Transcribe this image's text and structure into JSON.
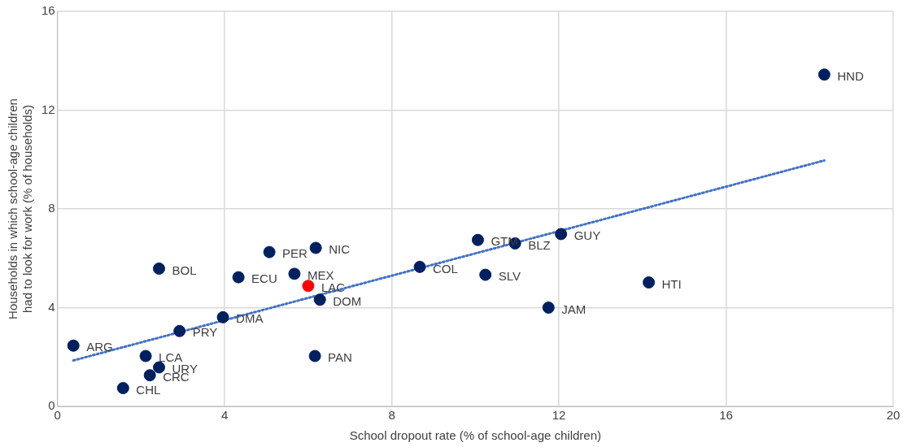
{
  "chart_data": {
    "type": "scatter",
    "xlabel": "School dropout rate (% of school-age children)",
    "ylabel": "Households in which school-age children had to look for work (% of households)",
    "xlim": [
      0,
      20
    ],
    "xticks": [
      0,
      4,
      8,
      12,
      16,
      20
    ],
    "ylim": [
      0,
      16
    ],
    "yticks": [
      0,
      4,
      8,
      12,
      16
    ],
    "grid": true,
    "legend": false,
    "marker": "circle",
    "series": [
      {
        "type": "scatter",
        "color": "#002060",
        "x": [
          18.35,
          12.05,
          10.95,
          10.06,
          8.67,
          10.24,
          14.15,
          11.75,
          6.18,
          5.07,
          5.67,
          4.33,
          6.28,
          2.43,
          3.96,
          2.92,
          0.38,
          2.11,
          2.43,
          2.21,
          1.57,
          6.16
        ],
        "values": [
          13.44,
          6.98,
          6.6,
          6.74,
          5.65,
          5.33,
          5.02,
          4.0,
          6.42,
          6.25,
          5.37,
          5.23,
          4.32,
          5.58,
          3.61,
          3.05,
          2.46,
          2.04,
          1.58,
          1.26,
          0.74,
          2.04
        ]
      },
      {
        "type": "scatter",
        "color": "#ff0000",
        "x": [
          6.0
        ],
        "values": [
          4.88
        ]
      },
      {
        "type": "line",
        "color": "#4472c4",
        "line_style": "dotted",
        "marker": "none",
        "x": [
          0.38,
          18.35
        ],
        "values": [
          1.86,
          9.96
        ]
      }
    ],
    "annotations": [
      {
        "text": "HND",
        "x": 18.35,
        "y": 13.44
      },
      {
        "text": "GUY",
        "x": 12.05,
        "y": 6.98
      },
      {
        "text": "BLZ",
        "x": 10.95,
        "y": 6.6
      },
      {
        "text": "GTM",
        "x": 10.06,
        "y": 6.74
      },
      {
        "text": "COL",
        "x": 8.67,
        "y": 5.65
      },
      {
        "text": "SLV",
        "x": 10.24,
        "y": 5.33
      },
      {
        "text": "HTI",
        "x": 14.15,
        "y": 5.02
      },
      {
        "text": "JAM",
        "x": 11.75,
        "y": 4.0
      },
      {
        "text": "NIC",
        "x": 6.18,
        "y": 6.42
      },
      {
        "text": "PER",
        "x": 5.07,
        "y": 6.25
      },
      {
        "text": "MEX",
        "x": 5.67,
        "y": 5.37
      },
      {
        "text": "ECU",
        "x": 4.33,
        "y": 5.23
      },
      {
        "text": "LAC",
        "x": 6.0,
        "y": 4.88
      },
      {
        "text": "DOM",
        "x": 6.28,
        "y": 4.32
      },
      {
        "text": "BOL",
        "x": 2.43,
        "y": 5.58
      },
      {
        "text": "DMA",
        "x": 3.96,
        "y": 3.61
      },
      {
        "text": "PRY",
        "x": 2.92,
        "y": 3.05
      },
      {
        "text": "ARG",
        "x": 0.38,
        "y": 2.46
      },
      {
        "text": "LCA",
        "x": 2.11,
        "y": 2.04
      },
      {
        "text": "URY",
        "x": 2.43,
        "y": 1.58
      },
      {
        "text": "CRC",
        "x": 2.21,
        "y": 1.26
      },
      {
        "text": "CHL",
        "x": 1.57,
        "y": 0.74
      },
      {
        "text": "PAN",
        "x": 6.16,
        "y": 2.04
      }
    ]
  }
}
